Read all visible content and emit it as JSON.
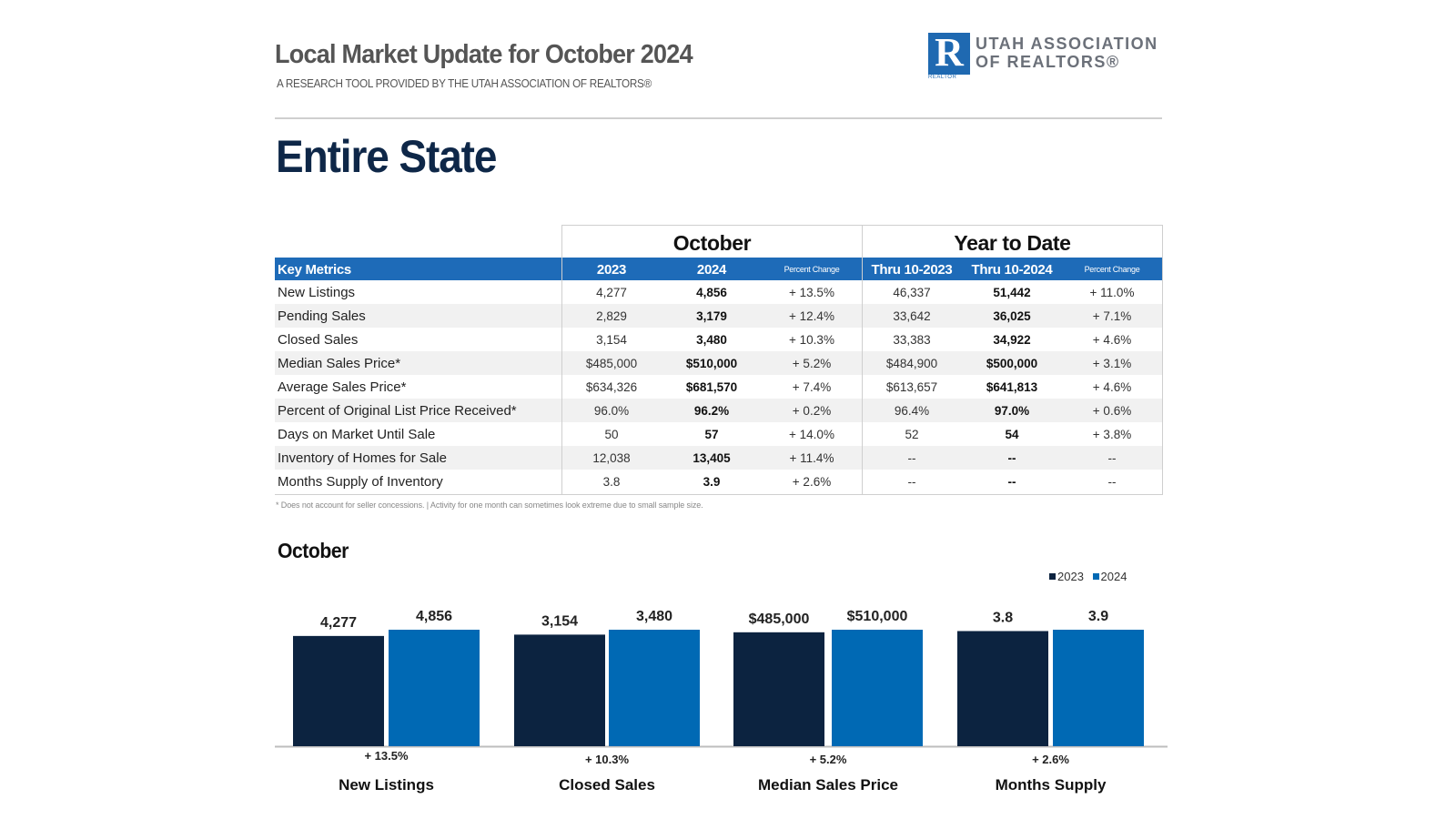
{
  "header": {
    "title": "Local Market Update for October 2024",
    "subtitle": "A RESEARCH TOOL PROVIDED BY THE UTAH ASSOCIATION OF REALTORS®",
    "logo": {
      "mark": "R",
      "small_text": "REALTOR",
      "line1": "UTAH ASSOCIATION",
      "line2": "OF REALTORS®"
    },
    "area": "Entire State"
  },
  "table": {
    "groups": [
      "October",
      "Year to Date"
    ],
    "columns": [
      "Key Metrics",
      "2023",
      "2024",
      "Percent Change",
      "Thru 10-2023",
      "Thru 10-2024",
      "Percent Change"
    ],
    "rows": [
      [
        "New Listings",
        "4,277",
        "4,856",
        "+ 13.5%",
        "46,337",
        "51,442",
        "+ 11.0%"
      ],
      [
        "Pending Sales",
        "2,829",
        "3,179",
        "+ 12.4%",
        "33,642",
        "36,025",
        "+ 7.1%"
      ],
      [
        "Closed Sales",
        "3,154",
        "3,480",
        "+ 10.3%",
        "33,383",
        "34,922",
        "+ 4.6%"
      ],
      [
        "Median Sales Price*",
        "$485,000",
        "$510,000",
        "+ 5.2%",
        "$484,900",
        "$500,000",
        "+ 3.1%"
      ],
      [
        "Average Sales Price*",
        "$634,326",
        "$681,570",
        "+ 7.4%",
        "$613,657",
        "$641,813",
        "+ 4.6%"
      ],
      [
        "Percent of Original List Price Received*",
        "96.0%",
        "96.2%",
        "+ 0.2%",
        "96.4%",
        "97.0%",
        "+ 0.6%"
      ],
      [
        "Days on Market Until Sale",
        "50",
        "57",
        "+ 14.0%",
        "52",
        "54",
        "+ 3.8%"
      ],
      [
        "Inventory of Homes for Sale",
        "12,038",
        "13,405",
        "+ 11.4%",
        "--",
        "--",
        "--"
      ],
      [
        "Months Supply of Inventory",
        "3.8",
        "3.9",
        "+ 2.6%",
        "--",
        "--",
        "--"
      ]
    ],
    "footnote": "* Does not account for seller concessions.  |  Activity for one month can sometimes look extreme due to small sample size."
  },
  "colors": {
    "navy": "#0c2340",
    "blue": "#0069b4",
    "header_blue": "#1e6bb8",
    "title_navy": "#0e2748"
  },
  "chart_data": {
    "type": "bar",
    "title": "October",
    "legend": [
      "2023",
      "2024"
    ],
    "legend_position": "top-right",
    "categories": [
      "New Listings",
      "Closed Sales",
      "Median Sales Price",
      "Months Supply"
    ],
    "series": [
      {
        "name": "2023",
        "values": [
          4277,
          3154,
          485000,
          3.8
        ],
        "labels": [
          "4,277",
          "3,154",
          "$485,000",
          "3.8"
        ]
      },
      {
        "name": "2024",
        "values": [
          4856,
          3480,
          510000,
          3.9
        ],
        "labels": [
          "4,856",
          "3,480",
          "$510,000",
          "3.9"
        ]
      }
    ],
    "changes": [
      "+ 13.5%",
      "+ 10.3%",
      "+ 5.2%",
      "+ 2.6%"
    ],
    "scale_note": "each category independently scaled"
  }
}
